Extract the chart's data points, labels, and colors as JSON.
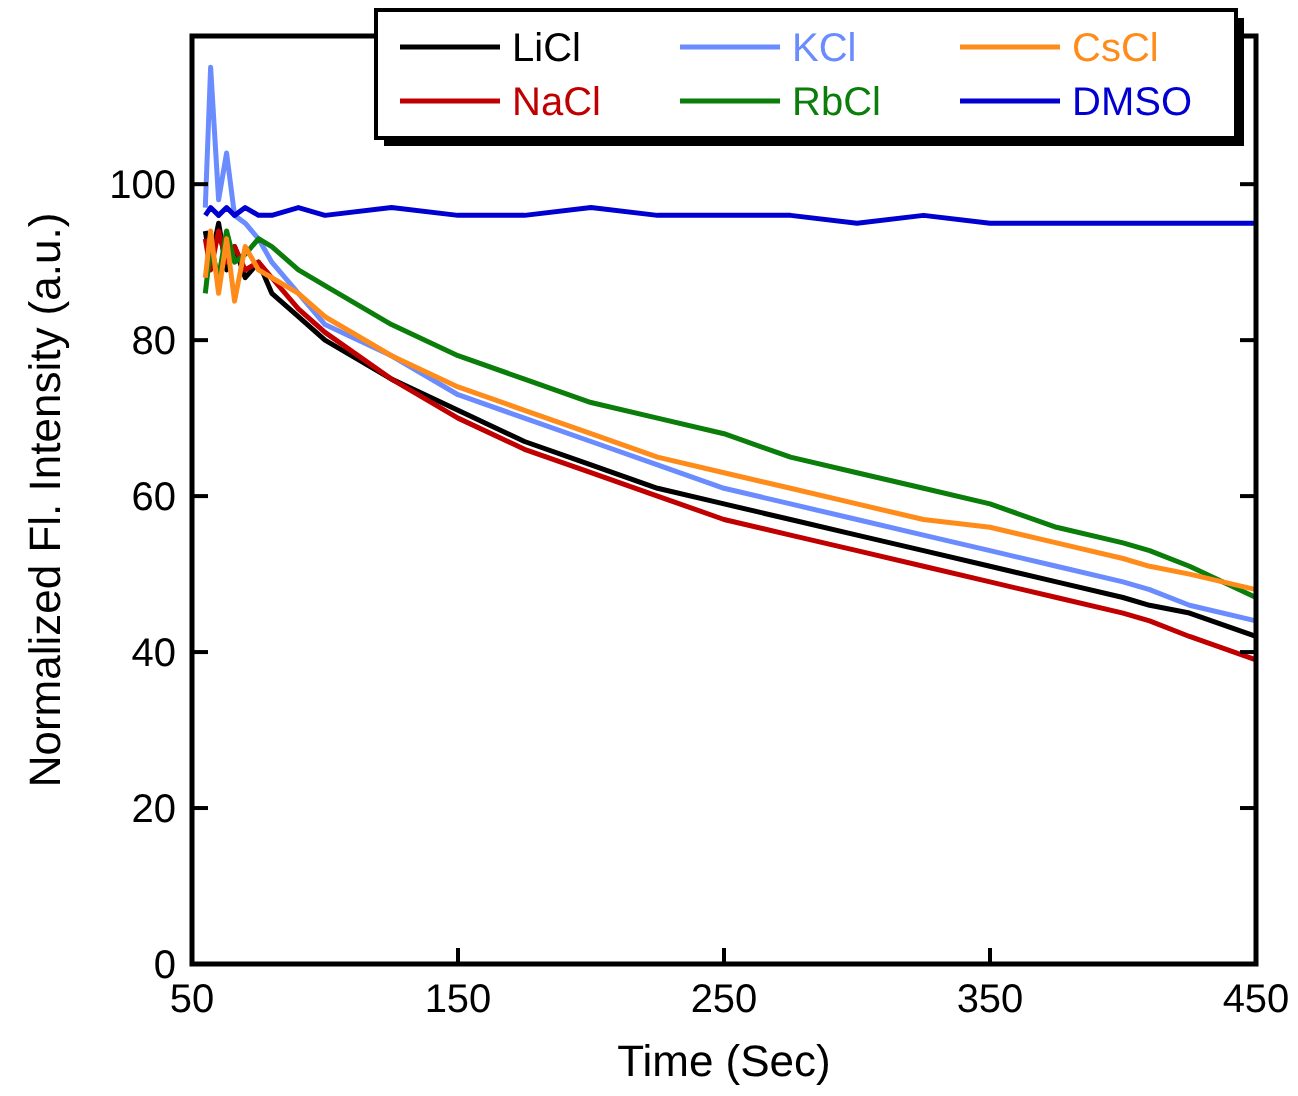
{
  "chart_data": {
    "type": "line",
    "xlabel": "Time (Sec)",
    "ylabel": "Normalized Fl. Intensity (a.u.)",
    "x": [
      55,
      57,
      60,
      63,
      66,
      70,
      75,
      80,
      90,
      100,
      125,
      150,
      175,
      200,
      225,
      250,
      275,
      300,
      325,
      350,
      375,
      400,
      410,
      425,
      450
    ],
    "series": [
      {
        "name": "LiCl",
        "color": "#000000",
        "values": [
          94,
          90,
          95,
          89,
          92,
          88,
          90,
          86,
          83,
          80,
          75,
          71,
          67,
          64,
          61,
          59,
          57,
          55,
          53,
          51,
          49,
          47,
          46,
          45,
          42
        ]
      },
      {
        "name": "NaCl",
        "color": "#c00000",
        "values": [
          93,
          89,
          94,
          90,
          92,
          89,
          90,
          88,
          84,
          81,
          75,
          70,
          66,
          63,
          60,
          57,
          55,
          53,
          51,
          49,
          47,
          45,
          44,
          42,
          39
        ]
      },
      {
        "name": "KCl",
        "color": "#6a8cff",
        "values": [
          97,
          115,
          98,
          104,
          96,
          95,
          93,
          90,
          86,
          82,
          78,
          73,
          70,
          67,
          64,
          61,
          59,
          57,
          55,
          53,
          51,
          49,
          48,
          46,
          44
        ]
      },
      {
        "name": "RbCl",
        "color": "#0a7d0a",
        "values": [
          86,
          92,
          88,
          94,
          90,
          91,
          93,
          92,
          89,
          87,
          82,
          78,
          75,
          72,
          70,
          68,
          65,
          63,
          61,
          59,
          56,
          54,
          53,
          51,
          47
        ]
      },
      {
        "name": "CsCl",
        "color": "#ff8c1a",
        "values": [
          88,
          94,
          86,
          93,
          85,
          92,
          89,
          88,
          86,
          83,
          78,
          74,
          71,
          68,
          65,
          63,
          61,
          59,
          57,
          56,
          54,
          52,
          51,
          50,
          48
        ]
      },
      {
        "name": "DMSO",
        "color": "#0000d0",
        "values": [
          96,
          97,
          96,
          97,
          96,
          97,
          96,
          96,
          97,
          96,
          97,
          96,
          96,
          97,
          96,
          96,
          96,
          95,
          96,
          95,
          95,
          95,
          95,
          95,
          95
        ]
      }
    ],
    "xlim": [
      50,
      450
    ],
    "xticks": [
      50,
      150,
      250,
      350,
      450
    ],
    "ylim": [
      0,
      119
    ],
    "yticks": [
      0,
      20,
      40,
      60,
      80,
      100
    ],
    "legend": "top right",
    "grid": false
  }
}
